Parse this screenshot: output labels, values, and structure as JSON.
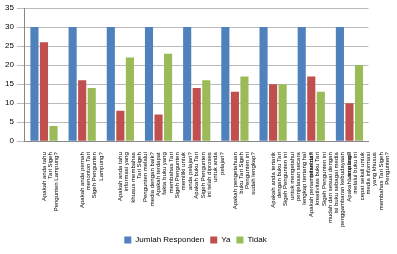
{
  "chart_data": {
    "type": "bar",
    "categories": [
      "Apakah anda tahu Tari Sigeh Pengunten Lampung?",
      "Apakah anda pernah menonton Tari Sigeh Pengunten Lampung?",
      "Apakah anda tahu informasi yang khusus membahas Tari Sigeh Pengunten melalui media dengan baik?",
      "Apakah terdapat fakta buku yang membahas Tari Sigeh Pengunten memiliki untuk anda pelajari?",
      "Apakah buku Tari Sigeh Pengunten ini telah diproses untuk anda pelajari?",
      "Apakah pengetahuan buku Tari Sigeh Pengunten ini sudah lengkap?",
      "Apakah anda tertarik dengan buku Tari Sigeh Pengunten ini untuk mengetahui penjelasan secara lengkap tentang hal tersebut?",
      "Apakah penampilan dan kreativitas buku Tari Sigeh Pengunten ini mudah dan sesuai dengan isi buku sebagai media penggambaran kebudayaan Lampung?",
      "Apakah visualisasi melalui buku ini cepat sekali untuk media informasi yang khusus membahas Tari Sigeh Pengunten?"
    ],
    "series": [
      {
        "name": "Jumlah Responden",
        "color": "#4f81bd",
        "values": [
          30,
          30,
          30,
          30,
          30,
          30,
          30,
          30,
          30
        ]
      },
      {
        "name": "Ya",
        "color": "#c0504d",
        "values": [
          26,
          16,
          8,
          7,
          14,
          13,
          15,
          17,
          10
        ]
      },
      {
        "name": "Tidak",
        "color": "#9bbb59",
        "values": [
          4,
          14,
          22,
          23,
          16,
          17,
          15,
          13,
          20
        ]
      }
    ],
    "ylim": [
      0,
      35
    ],
    "yticks": [
      0,
      5,
      10,
      15,
      20,
      25,
      30,
      35
    ],
    "grid": true,
    "legend": "bottom"
  }
}
